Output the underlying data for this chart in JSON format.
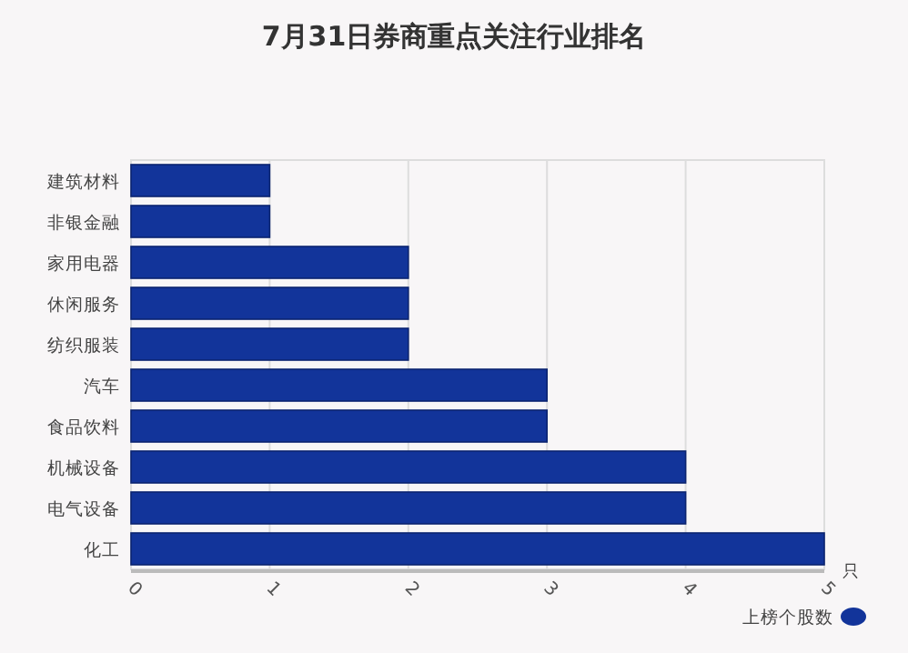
{
  "chart_data": {
    "type": "bar",
    "orientation": "horizontal",
    "title": "7月31日券商重点关注行业排名",
    "categories": [
      "建筑材料",
      "非银金融",
      "家用电器",
      "休闲服务",
      "纺织服装",
      "汽车",
      "食品饮料",
      "机械设备",
      "电气设备",
      "化工"
    ],
    "series": [
      {
        "name": "上榜个股数",
        "color": "#12349a",
        "values": [
          1,
          1,
          2,
          2,
          2,
          3,
          3,
          4,
          4,
          5
        ]
      }
    ],
    "xlabel": "只",
    "xlim": [
      0,
      5
    ],
    "xticks": [
      0,
      1,
      2,
      3,
      4,
      5
    ],
    "grid": "x",
    "legend": "bottom right"
  }
}
